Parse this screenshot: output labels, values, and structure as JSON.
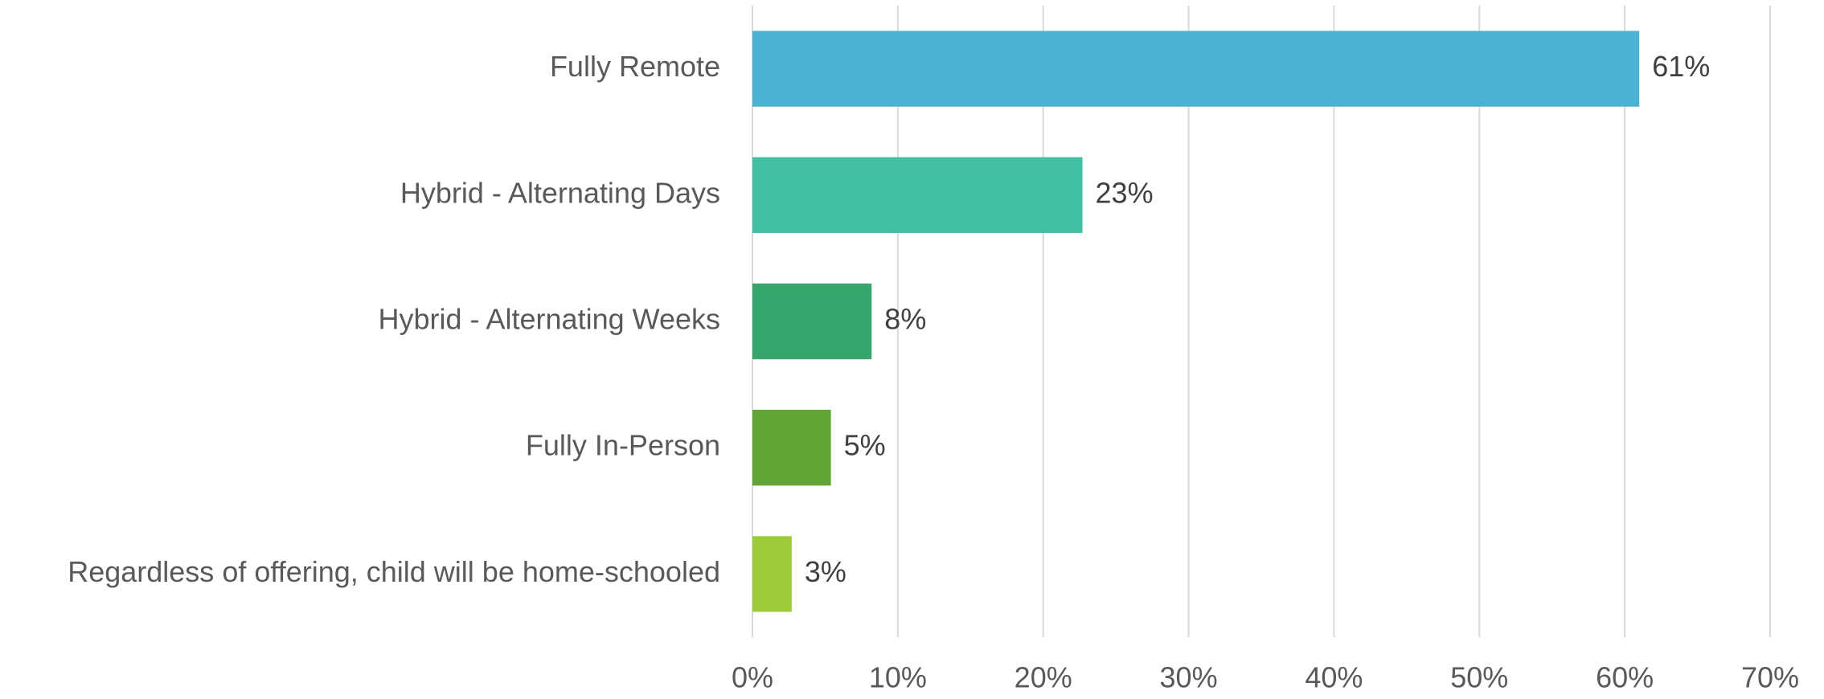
{
  "chart_data": {
    "type": "bar",
    "orientation": "horizontal",
    "categories": [
      "Fully Remote",
      "Hybrid - Alternating Days",
      "Hybrid - Alternating Weeks",
      "Fully In-Person",
      "Regardless of offering, child will be home-schooled"
    ],
    "values": [
      61,
      22.7,
      8.2,
      5.4,
      2.7
    ],
    "value_labels": [
      "61%",
      "23%",
      "8%",
      "5%",
      "3%"
    ],
    "colors": [
      "#4bb2d3",
      "#43c0a2",
      "#36a66e",
      "#63a437",
      "#9ccb3a"
    ],
    "xlim": [
      0,
      70
    ],
    "xticks": [
      {
        "value": 0,
        "label": "0%"
      },
      {
        "value": 10,
        "label": "10%"
      },
      {
        "value": 20,
        "label": "20%"
      },
      {
        "value": 30,
        "label": "30%"
      },
      {
        "value": 40,
        "label": "40%"
      },
      {
        "value": 50,
        "label": "50%"
      },
      {
        "value": 60,
        "label": "60%"
      },
      {
        "value": 70,
        "label": "70%"
      }
    ],
    "grid": true
  }
}
